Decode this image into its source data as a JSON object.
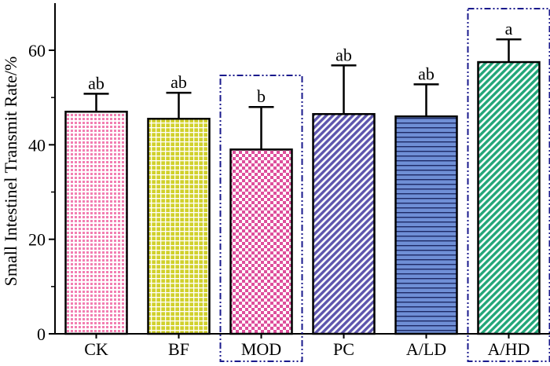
{
  "chart_data": {
    "type": "bar",
    "title": "",
    "xlabel": "",
    "ylabel": "Small Intestinel Transmit Rate/%",
    "ylim": [
      0,
      70
    ],
    "yticks": [
      0,
      20,
      40,
      60
    ],
    "categories": [
      "CK",
      "BF",
      "MOD",
      "PC",
      "A/LD",
      "A/HD"
    ],
    "values": [
      47,
      45.5,
      39,
      46.5,
      46,
      57.5
    ],
    "errors": [
      3.8,
      5.5,
      9,
      10.3,
      6.8,
      4.8
    ],
    "significance": [
      "ab",
      "ab",
      "b",
      "ab",
      "ab",
      "a"
    ],
    "highlighted": [
      "MOD",
      "A/HD"
    ],
    "bar_colors": [
      "#f7b3cf",
      "#d6d633",
      "#de4f9c",
      "#6a62b5",
      "#6f8fd6",
      "#2fb38a"
    ],
    "bar_patterns": [
      "dots",
      "grid",
      "checker",
      "diagonal-rev",
      "horizontal",
      "diagonal"
    ],
    "highlight_color": "#1a1a8c"
  }
}
